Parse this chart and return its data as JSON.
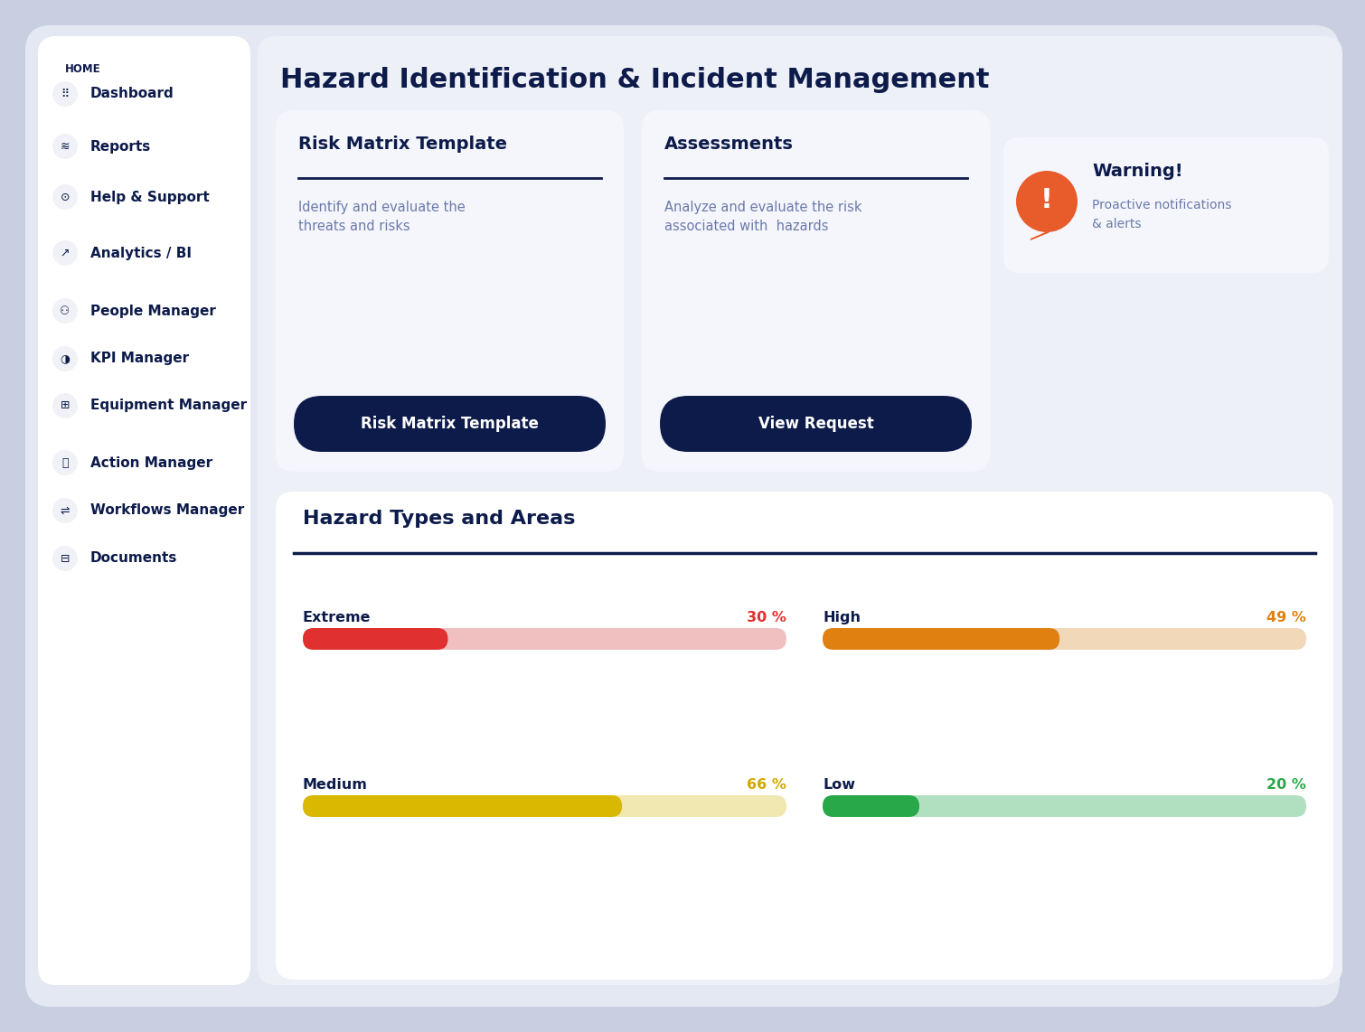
{
  "title": "Hazard Identification & Incident Management",
  "background_outer": "#c8cfe0",
  "background_inner": "#eef0f7",
  "sidebar_bg": "#ffffff",
  "sidebar_text_color": "#0d1b4b",
  "sidebar_items": [
    "Dashboard",
    "Reports",
    "Help & Support",
    "Analytics / BI",
    "People Manager",
    "KPI Manager",
    "Equipment Manager",
    "Action Manager",
    "Workflows Manager",
    "Documents"
  ],
  "sidebar_home_label": "HOME",
  "card1_title": "Risk Matrix Template",
  "card1_desc": "Identify and evaluate the\nthreats and risks",
  "card1_btn": "Risk Matrix Template",
  "card2_title": "Assessments",
  "card2_desc": "Analyze and evaluate the risk\nassociated with  hazards",
  "card2_btn": "View Request",
  "warning_title": "Warning!",
  "warning_desc": "Proactive notifications\n& alerts",
  "warning_color": "#e85c2c",
  "btn_bg": "#0d1b4b",
  "btn_text": "#ffffff",
  "divider_color": "#0d1b4b",
  "hazard_section_title": "Hazard Types and Areas",
  "hazard_section_bg": "#ffffff",
  "risk_levels": [
    {
      "label": "Extreme",
      "value": 30,
      "pct_text": "30 %",
      "bar_color": "#e03030",
      "bg_color": "#f0c0c0",
      "pct_color": "#e03030"
    },
    {
      "label": "High",
      "value": 49,
      "pct_text": "49 %",
      "bar_color": "#e08010",
      "bg_color": "#f0d8b8",
      "pct_color": "#e08010"
    },
    {
      "label": "Medium",
      "value": 66,
      "pct_text": "66 %",
      "bar_color": "#d8b800",
      "bg_color": "#f0e8b0",
      "pct_color": "#d0a800"
    },
    {
      "label": "Low",
      "value": 20,
      "pct_text": "20 %",
      "bar_color": "#28a848",
      "bg_color": "#b0e0c0",
      "pct_color": "#28a848"
    }
  ]
}
